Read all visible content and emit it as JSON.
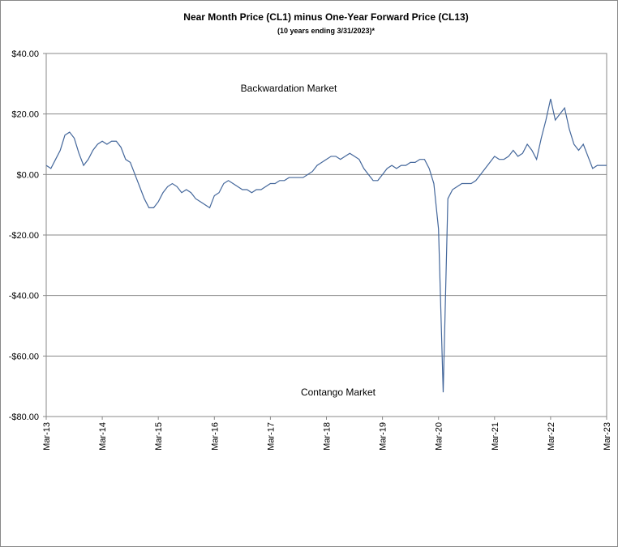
{
  "chart_data": {
    "type": "line",
    "title": "Near Month Price (CL1) minus One-Year Forward Price (CL13)",
    "subtitle": "(10 years ending  3/31/2023)*",
    "annotations": [
      "Backwardation Market",
      "Contango Market"
    ],
    "x": [
      "2013-03",
      "2013-04",
      "2013-05",
      "2013-06",
      "2013-07",
      "2013-08",
      "2013-09",
      "2013-10",
      "2013-11",
      "2013-12",
      "2014-01",
      "2014-02",
      "2014-03",
      "2014-04",
      "2014-05",
      "2014-06",
      "2014-07",
      "2014-08",
      "2014-09",
      "2014-10",
      "2014-11",
      "2014-12",
      "2015-01",
      "2015-02",
      "2015-03",
      "2015-04",
      "2015-05",
      "2015-06",
      "2015-07",
      "2015-08",
      "2015-09",
      "2015-10",
      "2015-11",
      "2015-12",
      "2016-01",
      "2016-02",
      "2016-03",
      "2016-04",
      "2016-05",
      "2016-06",
      "2016-07",
      "2016-08",
      "2016-09",
      "2016-10",
      "2016-11",
      "2016-12",
      "2017-01",
      "2017-02",
      "2017-03",
      "2017-04",
      "2017-05",
      "2017-06",
      "2017-07",
      "2017-08",
      "2017-09",
      "2017-10",
      "2017-11",
      "2017-12",
      "2018-01",
      "2018-02",
      "2018-03",
      "2018-04",
      "2018-05",
      "2018-06",
      "2018-07",
      "2018-08",
      "2018-09",
      "2018-10",
      "2018-11",
      "2018-12",
      "2019-01",
      "2019-02",
      "2019-03",
      "2019-04",
      "2019-05",
      "2019-06",
      "2019-07",
      "2019-08",
      "2019-09",
      "2019-10",
      "2019-11",
      "2019-12",
      "2020-01",
      "2020-02",
      "2020-03",
      "2020-04",
      "2020-05",
      "2020-06",
      "2020-07",
      "2020-08",
      "2020-09",
      "2020-10",
      "2020-11",
      "2020-12",
      "2021-01",
      "2021-02",
      "2021-03",
      "2021-04",
      "2021-05",
      "2021-06",
      "2021-07",
      "2021-08",
      "2021-09",
      "2021-10",
      "2021-11",
      "2021-12",
      "2022-01",
      "2022-02",
      "2022-03",
      "2022-04",
      "2022-05",
      "2022-06",
      "2022-07",
      "2022-08",
      "2022-09",
      "2022-10",
      "2022-11",
      "2022-12",
      "2023-01",
      "2023-02",
      "2023-03"
    ],
    "series": [
      {
        "color": "#44679b",
        "values": [
          3,
          2,
          5,
          8,
          13,
          14,
          12,
          7,
          3,
          5,
          8,
          10,
          11,
          10,
          11,
          11,
          9,
          5,
          4,
          0,
          -4,
          -8,
          -11,
          -11,
          -9,
          -6,
          -4,
          -3,
          -4,
          -6,
          -5,
          -6,
          -8,
          -9,
          -10,
          -11,
          -7,
          -6,
          -3,
          -2,
          -3,
          -4,
          -5,
          -5,
          -6,
          -5,
          -5,
          -4,
          -3,
          -3,
          -2,
          -2,
          -1,
          -1,
          -1,
          -1,
          0,
          1,
          3,
          4,
          5,
          6,
          6,
          5,
          6,
          7,
          6,
          5,
          2,
          0,
          -2,
          -2,
          0,
          2,
          3,
          2,
          3,
          3,
          4,
          4,
          5,
          5,
          2,
          -3,
          -18,
          -72,
          -8,
          -5,
          -4,
          -3,
          -3,
          -3,
          -2,
          0,
          2,
          4,
          6,
          5,
          5,
          6,
          8,
          6,
          7,
          10,
          8,
          5,
          12,
          18,
          25,
          18,
          20,
          22,
          15,
          10,
          8,
          10,
          6,
          2,
          3,
          3,
          3
        ]
      }
    ],
    "xlim": [
      "2013-03",
      "2023-03"
    ],
    "xticks": [
      {
        "value": "2013-03",
        "label": "Mar-13"
      },
      {
        "value": "2014-03",
        "label": "Mar-14"
      },
      {
        "value": "2015-03",
        "label": "Mar-15"
      },
      {
        "value": "2016-03",
        "label": "Mar-16"
      },
      {
        "value": "2017-03",
        "label": "Mar-17"
      },
      {
        "value": "2018-03",
        "label": "Mar-18"
      },
      {
        "value": "2019-03",
        "label": "Mar-19"
      },
      {
        "value": "2020-03",
        "label": "Mar-20"
      },
      {
        "value": "2021-03",
        "label": "Mar-21"
      },
      {
        "value": "2022-03",
        "label": "Mar-22"
      },
      {
        "value": "2023-03",
        "label": "Mar-23"
      }
    ],
    "ylim": [
      -80,
      40
    ],
    "yticks": [
      {
        "value": -80,
        "label": "-$80.00"
      },
      {
        "value": -60,
        "label": "-$60.00"
      },
      {
        "value": -40,
        "label": "-$40.00"
      },
      {
        "value": -20,
        "label": "-$20.00"
      },
      {
        "value": 0,
        "label": "$0.00"
      },
      {
        "value": 20,
        "label": "$20.00"
      },
      {
        "value": 40,
        "label": "$40.00"
      }
    ],
    "grid": true
  }
}
